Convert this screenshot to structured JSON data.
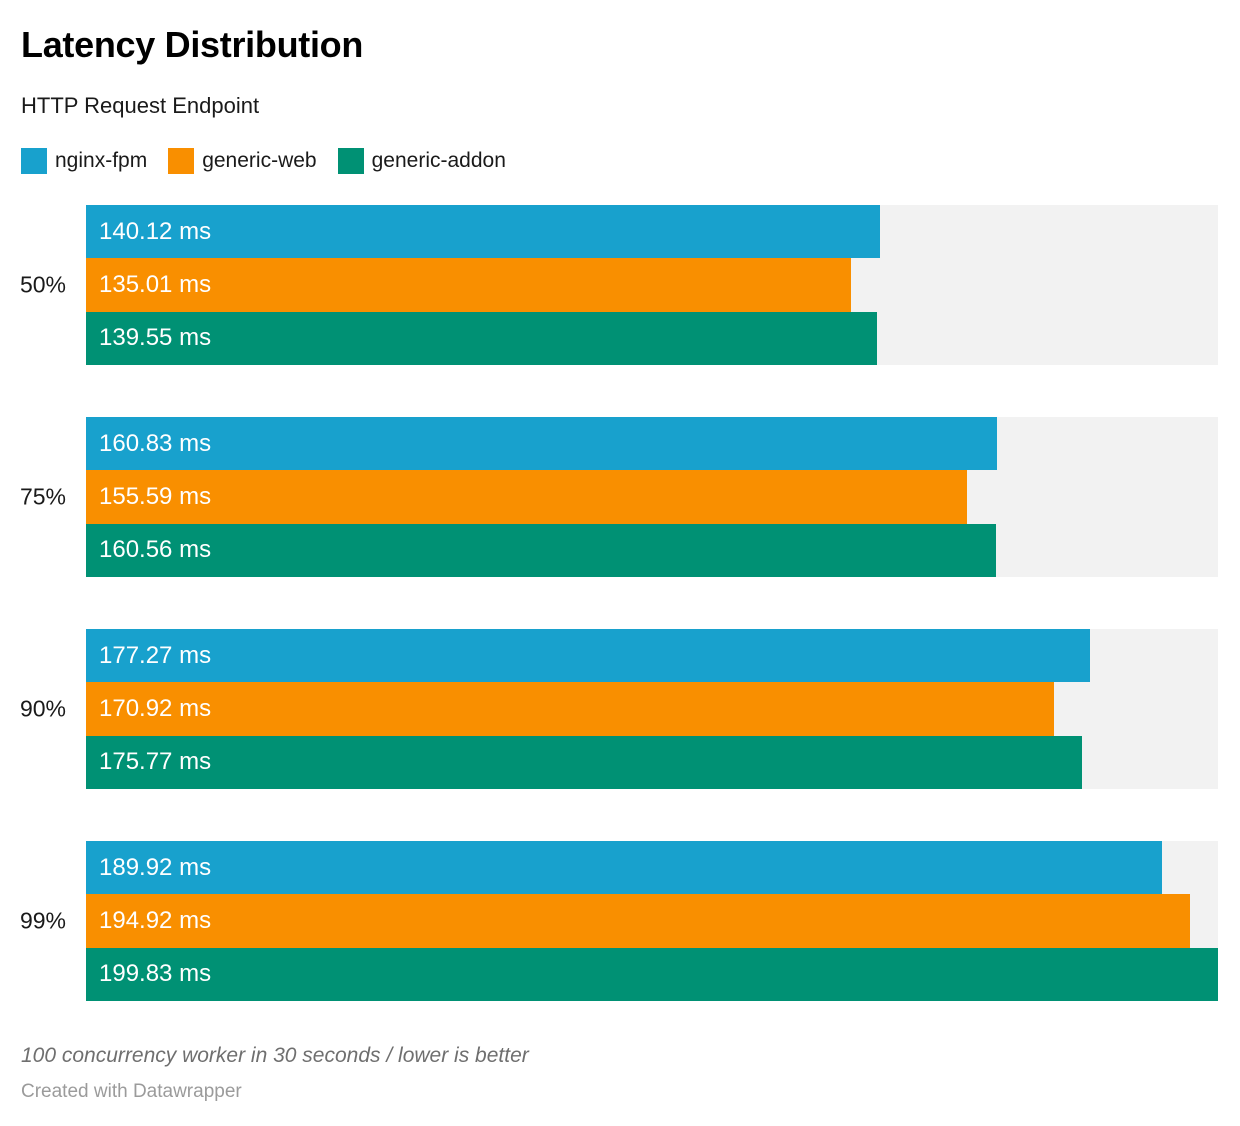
{
  "header": {
    "title": "Latency Distribution",
    "subtitle": "HTTP Request Endpoint"
  },
  "legend": {
    "items": [
      {
        "label": "nginx-fpm",
        "color": "#18a1cd"
      },
      {
        "label": "generic-web",
        "color": "#f98f00"
      },
      {
        "label": "generic-addon",
        "color": "#009174"
      }
    ]
  },
  "chart_data": {
    "type": "bar",
    "orientation": "horizontal",
    "title": "Latency Distribution",
    "subtitle": "HTTP Request Endpoint",
    "categories": [
      "50%",
      "75%",
      "90%",
      "99%"
    ],
    "series": [
      {
        "name": "nginx-fpm",
        "color": "#18a1cd",
        "values": [
          140.12,
          160.83,
          177.27,
          189.92
        ]
      },
      {
        "name": "generic-web",
        "color": "#f98f00",
        "values": [
          135.01,
          155.59,
          170.92,
          194.92
        ]
      },
      {
        "name": "generic-addon",
        "color": "#009174",
        "values": [
          139.55,
          160.56,
          175.77,
          199.83
        ]
      }
    ],
    "value_suffix": " ms",
    "value_decimals": 2,
    "xmin": 0,
    "xmax": 199.83,
    "bar_label_position": "inside-left",
    "track_color": "#f2f2f2",
    "grid": false,
    "legend_position": "top-left"
  },
  "footer": {
    "note": "100 concurrency worker in 30 seconds / lower is better",
    "credit": "Created with Datawrapper"
  },
  "colors": {
    "background": "#ffffff",
    "title_text": "#000000",
    "body_text": "#1a1a1a",
    "bar_label_text": "#ffffff",
    "note_text": "#6f6f6f",
    "credit_text": "#9b9b9b"
  }
}
